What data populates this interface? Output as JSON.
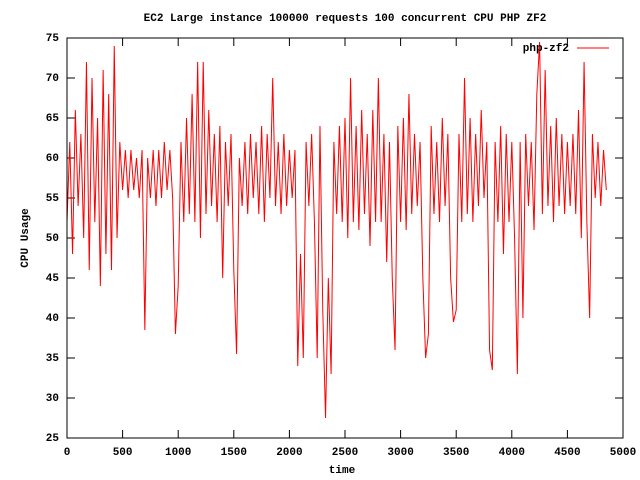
{
  "chart_data": {
    "type": "line",
    "title": "EC2 Large instance 100000 requests 100 concurrent CPU PHP ZF2",
    "x_label": "time",
    "y_label": "CPU Usage",
    "xlim": [
      0,
      5000
    ],
    "xticks": [
      0,
      500,
      1000,
      1500,
      2000,
      2500,
      3000,
      3500,
      4000,
      4500,
      5000
    ],
    "ylim": [
      25,
      75
    ],
    "yticks": [
      25,
      30,
      35,
      40,
      45,
      50,
      55,
      60,
      65,
      70,
      75
    ],
    "legend": "top-right",
    "x": [
      0,
      25,
      50,
      75,
      100,
      125,
      150,
      175,
      200,
      225,
      250,
      275,
      300,
      325,
      350,
      375,
      400,
      425,
      450,
      475,
      500,
      525,
      550,
      575,
      600,
      625,
      650,
      675,
      700,
      725,
      750,
      775,
      800,
      825,
      850,
      875,
      900,
      925,
      950,
      975,
      1000,
      1025,
      1050,
      1075,
      1100,
      1125,
      1150,
      1175,
      1200,
      1225,
      1250,
      1275,
      1300,
      1325,
      1350,
      1375,
      1400,
      1425,
      1450,
      1475,
      1500,
      1525,
      1550,
      1575,
      1600,
      1625,
      1650,
      1675,
      1700,
      1725,
      1750,
      1775,
      1800,
      1825,
      1850,
      1875,
      1900,
      1925,
      1950,
      1975,
      2000,
      2025,
      2050,
      2075,
      2100,
      2125,
      2150,
      2175,
      2200,
      2225,
      2250,
      2275,
      2300,
      2325,
      2350,
      2375,
      2400,
      2425,
      2450,
      2475,
      2500,
      2525,
      2550,
      2575,
      2600,
      2625,
      2650,
      2675,
      2700,
      2725,
      2750,
      2775,
      2800,
      2825,
      2850,
      2875,
      2900,
      2925,
      2950,
      2975,
      3000,
      3025,
      3050,
      3075,
      3100,
      3125,
      3150,
      3175,
      3200,
      3225,
      3250,
      3275,
      3300,
      3325,
      3350,
      3375,
      3400,
      3425,
      3450,
      3475,
      3500,
      3525,
      3550,
      3575,
      3600,
      3625,
      3650,
      3675,
      3700,
      3725,
      3750,
      3775,
      3800,
      3825,
      3850,
      3875,
      3900,
      3925,
      3950,
      3975,
      4000,
      4025,
      4050,
      4075,
      4100,
      4125,
      4150,
      4175,
      4200,
      4225,
      4250,
      4275,
      4300,
      4325,
      4350,
      4375,
      4400,
      4425,
      4450,
      4475,
      4500,
      4525,
      4550,
      4575,
      4600,
      4625,
      4650,
      4675,
      4700,
      4725,
      4750,
      4775,
      4800,
      4825,
      4850
    ],
    "series": [
      {
        "name": "php-zf2",
        "color": "#ff0000",
        "values": [
          52,
          62,
          48,
          66,
          54,
          63,
          50,
          72,
          46,
          70,
          52,
          65,
          44,
          71,
          48,
          68,
          46,
          74,
          50,
          62,
          56,
          61,
          55,
          61,
          56,
          60,
          55,
          61,
          38.5,
          60,
          55,
          61,
          54,
          61,
          55,
          62,
          56,
          61,
          55,
          38,
          44,
          62,
          52,
          65,
          53,
          68,
          52,
          72,
          50,
          72,
          53,
          66,
          54,
          63,
          52,
          64,
          45,
          62,
          54,
          63,
          46,
          35.5,
          60,
          54,
          62,
          53,
          63,
          55,
          62,
          53,
          64,
          52,
          63,
          55,
          70,
          54,
          62,
          53,
          63,
          54,
          61,
          55,
          61,
          34,
          48,
          35,
          62,
          54,
          63,
          52,
          35,
          64,
          41,
          27.5,
          45,
          33,
          62,
          53,
          64,
          52,
          65,
          50,
          70,
          52,
          64,
          51,
          66,
          53,
          63,
          49,
          66,
          52,
          70,
          52,
          63,
          47,
          62,
          45,
          36,
          64,
          52,
          65,
          51,
          68,
          53,
          63,
          54,
          62,
          45,
          35,
          38,
          64,
          53,
          62,
          52,
          65,
          54,
          63,
          45,
          39.5,
          41,
          63,
          52,
          70,
          53,
          65,
          52,
          63,
          54,
          66,
          55,
          62,
          36,
          33.5,
          62,
          52,
          64,
          48,
          63,
          52,
          62,
          50,
          33,
          62,
          40,
          63,
          54,
          62,
          51,
          68,
          74.5,
          53,
          71,
          54,
          64,
          52,
          65,
          54,
          63,
          53,
          62,
          54,
          63,
          53,
          66,
          50,
          72,
          52,
          40,
          63,
          55,
          62,
          54,
          61,
          56
        ]
      }
    ]
  }
}
